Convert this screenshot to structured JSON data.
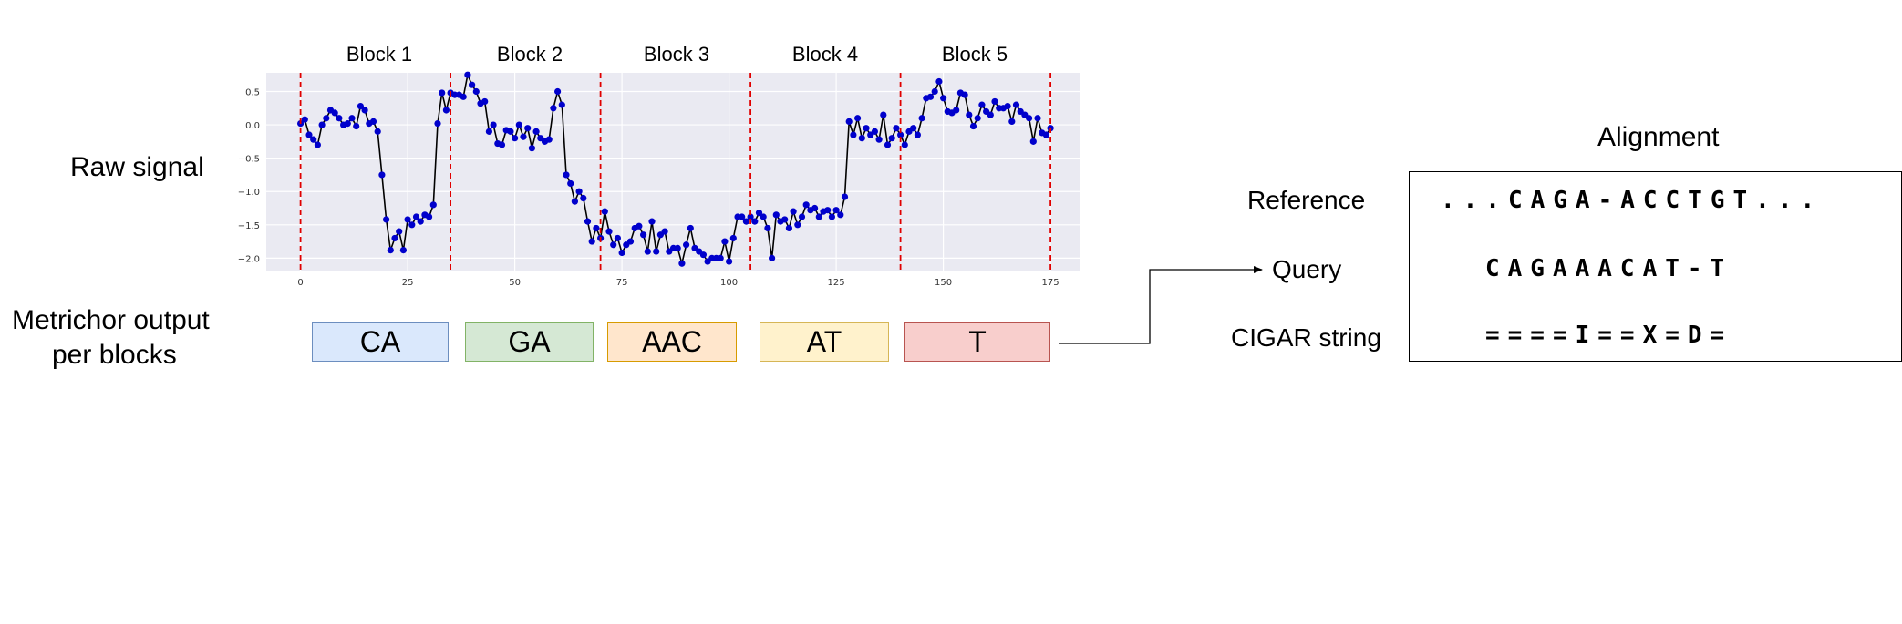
{
  "left_labels": {
    "raw_signal": "Raw signal",
    "metrichor_line1": "Metrichor output",
    "metrichor_line2": "per blocks"
  },
  "chart_data": {
    "type": "line",
    "block_labels": [
      "Block 1",
      "Block 2",
      "Block 3",
      "Block 4",
      "Block 5"
    ],
    "block_boundaries": [
      0,
      35,
      70,
      105,
      140,
      175
    ],
    "xlim": [
      -8,
      182
    ],
    "ylim": [
      -2.2,
      0.78
    ],
    "x_ticks": [
      0,
      25,
      50,
      75,
      100,
      125,
      150,
      175
    ],
    "y_ticks": [
      0.5,
      0.0,
      -0.5,
      -1.0,
      -1.5,
      -2.0
    ],
    "y_tick_labels": [
      "0.5",
      "0.0",
      "−0.5",
      "−1.0",
      "−1.5",
      "−2.0"
    ],
    "grid": true,
    "line_color": "#000000",
    "marker_color": "#0000cc",
    "boundary_color": "#e00000",
    "background": "#eaeaf2",
    "values": [
      0.02,
      0.08,
      -0.15,
      -0.22,
      -0.3,
      0.0,
      0.1,
      0.22,
      0.18,
      0.1,
      0.0,
      0.02,
      0.1,
      -0.02,
      0.28,
      0.22,
      0.02,
      0.05,
      -0.1,
      -0.75,
      -1.42,
      -1.88,
      -1.7,
      -1.6,
      -1.88,
      -1.42,
      -1.5,
      -1.38,
      -1.45,
      -1.35,
      -1.38,
      -1.2,
      0.02,
      0.48,
      0.22,
      0.48,
      0.45,
      0.45,
      0.42,
      0.75,
      0.6,
      0.5,
      0.32,
      0.35,
      -0.1,
      0.0,
      -0.28,
      -0.3,
      -0.08,
      -0.1,
      -0.2,
      0.0,
      -0.18,
      -0.05,
      -0.35,
      -0.1,
      -0.2,
      -0.25,
      -0.22,
      0.25,
      0.5,
      0.3,
      -0.75,
      -0.88,
      -1.15,
      -1.0,
      -1.1,
      -1.45,
      -1.75,
      -1.55,
      -1.7,
      -1.3,
      -1.6,
      -1.8,
      -1.7,
      -1.92,
      -1.8,
      -1.75,
      -1.55,
      -1.52,
      -1.65,
      -1.9,
      -1.45,
      -1.9,
      -1.65,
      -1.6,
      -1.9,
      -1.85,
      -1.85,
      -2.08,
      -1.8,
      -1.55,
      -1.85,
      -1.9,
      -1.95,
      -2.05,
      -2.0,
      -2.0,
      -2.0,
      -1.75,
      -2.05,
      -1.7,
      -1.38,
      -1.38,
      -1.45,
      -1.38,
      -1.45,
      -1.32,
      -1.38,
      -1.55,
      -2.0,
      -1.35,
      -1.45,
      -1.42,
      -1.55,
      -1.3,
      -1.5,
      -1.38,
      -1.2,
      -1.28,
      -1.25,
      -1.38,
      -1.3,
      -1.28,
      -1.38,
      -1.28,
      -1.35,
      -1.08,
      0.05,
      -0.15,
      0.1,
      -0.2,
      -0.05,
      -0.15,
      -0.1,
      -0.22,
      0.15,
      -0.3,
      -0.2,
      -0.05,
      -0.15,
      -0.3,
      -0.1,
      -0.05,
      -0.15,
      0.1,
      0.4,
      0.42,
      0.5,
      0.65,
      0.4,
      0.2,
      0.18,
      0.22,
      0.48,
      0.45,
      0.15,
      -0.02,
      0.1,
      0.3,
      0.2,
      0.15,
      0.35,
      0.25,
      0.25,
      0.28,
      0.05,
      0.3,
      0.2,
      0.15,
      0.1,
      -0.25,
      0.1,
      -0.12,
      -0.15,
      -0.05
    ]
  },
  "blocks": [
    {
      "label": "CA",
      "fill": "#dae8fc",
      "border": "#6c8ebf"
    },
    {
      "label": "GA",
      "fill": "#d5e8d4",
      "border": "#82b366"
    },
    {
      "label": "AAC",
      "fill": "#ffe6cc",
      "border": "#d79b00"
    },
    {
      "label": "AT",
      "fill": "#fff2cc",
      "border": "#d6b656"
    },
    {
      "label": "T",
      "fill": "#f8cecc",
      "border": "#b85450"
    }
  ],
  "alignment": {
    "title": "Alignment",
    "reference_label": "Reference",
    "query_label": "Query",
    "cigar_label": "CIGAR string",
    "reference_seq": "...CAGA-ACCTGT...",
    "query_seq": "CAGAAACAT-T",
    "cigar_seq": "====I==X=D="
  }
}
